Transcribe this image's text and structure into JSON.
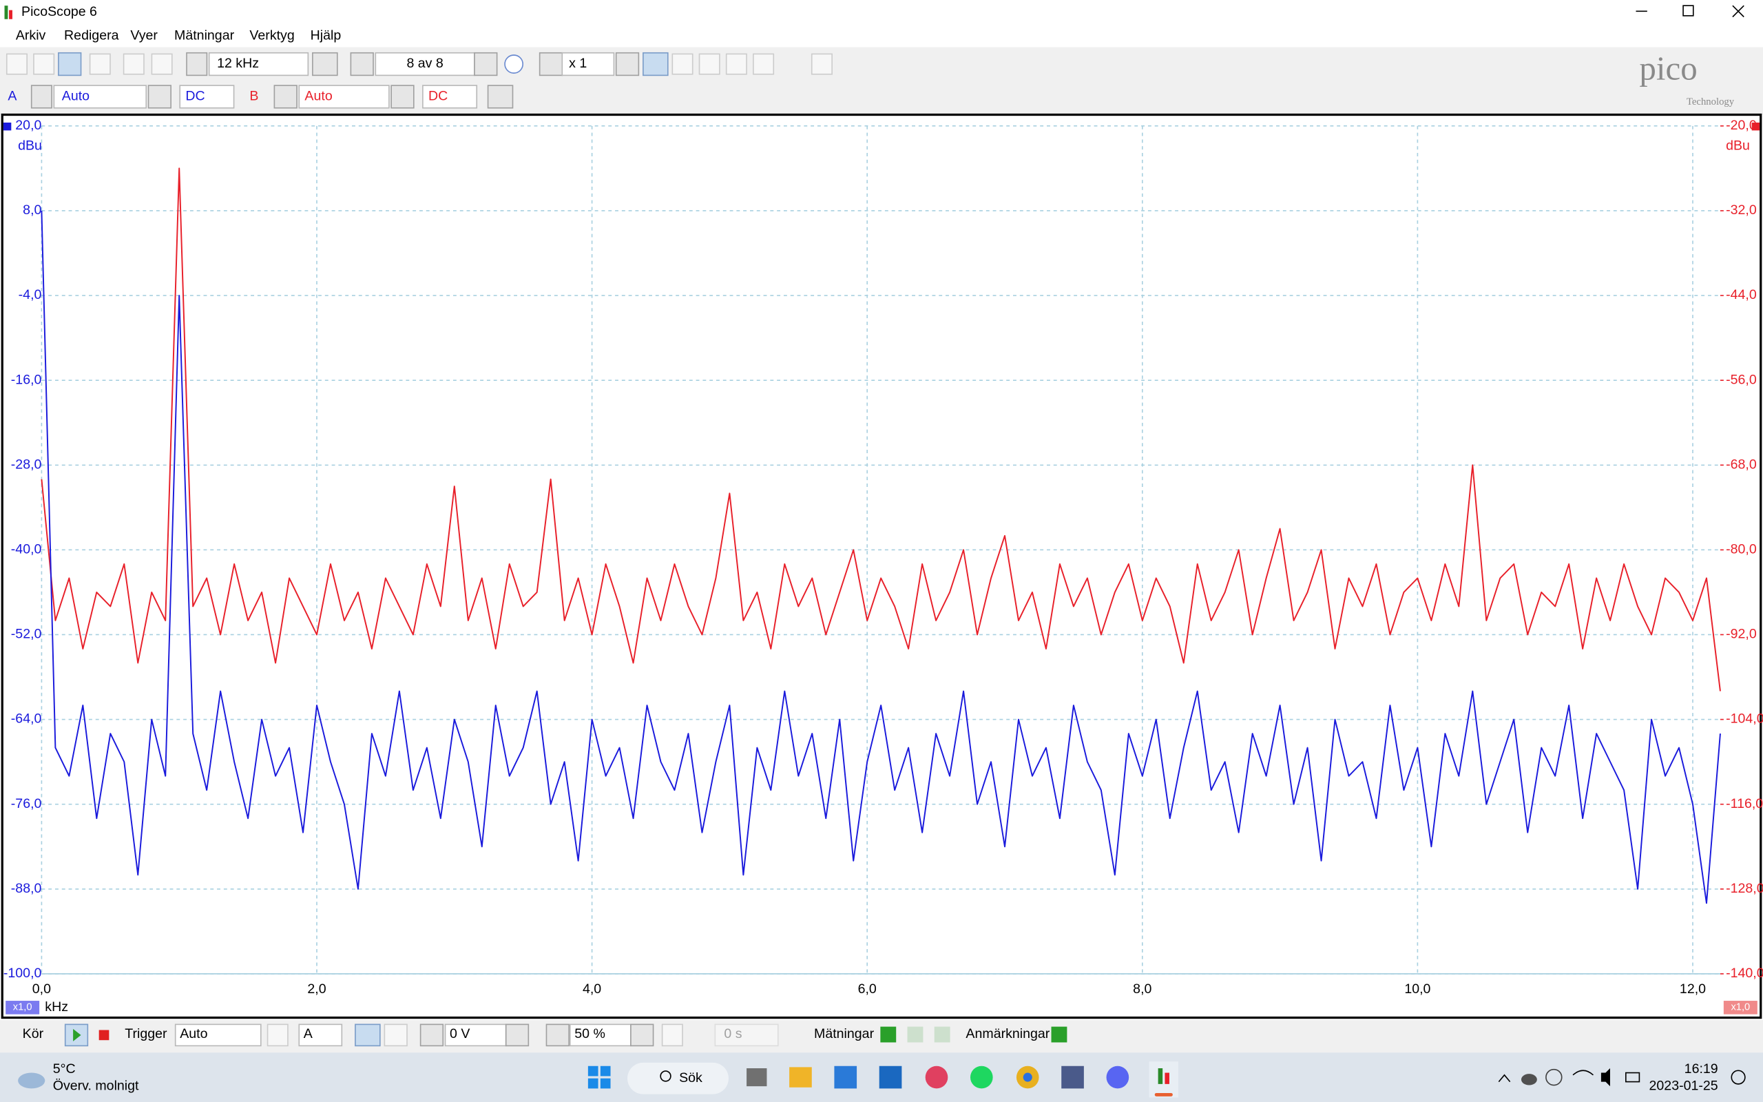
{
  "window": {
    "title": "PicoScope 6"
  },
  "menu": [
    "Arkiv",
    "Redigera",
    "Vyer",
    "Mätningar",
    "Verktyg",
    "Hjälp"
  ],
  "toolbar": {
    "span": "12 kHz",
    "buffer": "8 av 8",
    "zoom": "x 1"
  },
  "channels": [
    {
      "name": "A",
      "range": "Auto",
      "coupling": "DC"
    },
    {
      "name": "B",
      "range": "Auto",
      "coupling": "DC"
    }
  ],
  "logo": {
    "name": "pico",
    "subtitle": "Technology"
  },
  "scale_badges": [
    "x1,0",
    "x1,0"
  ],
  "bottom_bar": {
    "run": "Kör",
    "trigger_label": "Trigger",
    "trigger_mode": "Auto",
    "trigger_channel": "A",
    "threshold": "0 V",
    "pre_trigger": "50 %",
    "delay": "0 s",
    "measurements": "Mätningar",
    "notes": "Anmärkningar"
  },
  "taskbar": {
    "temperature": "5°C",
    "weather": "Överv. molnigt",
    "search": "Sök",
    "time": "16:19",
    "date": "2023-01-25"
  },
  "chart_data": {
    "type": "line",
    "x_label": "kHz",
    "y_label": "dBu",
    "y2_label": "dBu",
    "grid": true,
    "xlim": [
      0,
      12.2
    ],
    "ylim": [
      -100,
      20
    ],
    "y2lim": [
      -140,
      -20
    ],
    "xticks": [
      {
        "value": 0,
        "label": "0,0"
      },
      {
        "value": 2,
        "label": "2,0"
      },
      {
        "value": 4,
        "label": "4,0"
      },
      {
        "value": 6,
        "label": "6,0"
      },
      {
        "value": 8,
        "label": "8,0"
      },
      {
        "value": 10,
        "label": "10,0"
      },
      {
        "value": 12,
        "label": "12,0"
      }
    ],
    "yticks": [
      {
        "value": 20,
        "label": "20,0"
      },
      {
        "value": 8,
        "label": "8,0"
      },
      {
        "value": -4,
        "label": "-4,0"
      },
      {
        "value": -16,
        "label": "-16,0"
      },
      {
        "value": -28,
        "label": "-28,0"
      },
      {
        "value": -40,
        "label": "-40,0"
      },
      {
        "value": -52,
        "label": "-52,0"
      },
      {
        "value": -64,
        "label": "-64,0"
      },
      {
        "value": -76,
        "label": "-76,0"
      },
      {
        "value": -88,
        "label": "-88,0"
      },
      {
        "value": -100,
        "label": "-100,0"
      }
    ],
    "y2ticks": [
      {
        "value": -20,
        "label": "-20,0"
      },
      {
        "value": -32,
        "label": "-32,0"
      },
      {
        "value": -44,
        "label": "-44,0"
      },
      {
        "value": -56,
        "label": "-56,0"
      },
      {
        "value": -68,
        "label": "-68,0"
      },
      {
        "value": -80,
        "label": "-80,0"
      },
      {
        "value": -92,
        "label": "-92,0"
      },
      {
        "value": -104,
        "label": "-104,0"
      },
      {
        "value": -116,
        "label": "-116,0"
      },
      {
        "value": -128,
        "label": "-128,0"
      },
      {
        "value": -140,
        "label": "-140,0"
      }
    ],
    "x": [
      0,
      0.1,
      0.2,
      0.3,
      0.4,
      0.5,
      0.6,
      0.7,
      0.8,
      0.9,
      1.0,
      1.1,
      1.2,
      1.3,
      1.4,
      1.5,
      1.6,
      1.7,
      1.8,
      1.9,
      2.0,
      2.1,
      2.2,
      2.3,
      2.4,
      2.5,
      2.6,
      2.7,
      2.8,
      2.9,
      3.0,
      3.1,
      3.2,
      3.3,
      3.4,
      3.5,
      3.6,
      3.7,
      3.8,
      3.9,
      4.0,
      4.1,
      4.2,
      4.3,
      4.4,
      4.5,
      4.6,
      4.7,
      4.8,
      4.9,
      5.0,
      5.1,
      5.2,
      5.3,
      5.4,
      5.5,
      5.6,
      5.7,
      5.8,
      5.9,
      6.0,
      6.1,
      6.2,
      6.3,
      6.4,
      6.5,
      6.6,
      6.7,
      6.8,
      6.9,
      7.0,
      7.1,
      7.2,
      7.3,
      7.4,
      7.5,
      7.6,
      7.7,
      7.8,
      7.9,
      8.0,
      8.1,
      8.2,
      8.3,
      8.4,
      8.5,
      8.6,
      8.7,
      8.8,
      8.9,
      9.0,
      9.1,
      9.2,
      9.3,
      9.4,
      9.5,
      9.6,
      9.7,
      9.8,
      9.9,
      10.0,
      10.1,
      10.2,
      10.3,
      10.4,
      10.5,
      10.6,
      10.7,
      10.8,
      10.9,
      11.0,
      11.1,
      11.2,
      11.3,
      11.4,
      11.5,
      11.6,
      11.7,
      11.8,
      11.9,
      12.0,
      12.1,
      12.2
    ],
    "series": [
      {
        "color": "#1a1adc",
        "axis": "y",
        "values": [
          8,
          -68,
          -72,
          -62,
          -78,
          -66,
          -70,
          -86,
          -64,
          -72,
          -4,
          -66,
          -74,
          -60,
          -70,
          -78,
          -64,
          -72,
          -68,
          -80,
          -62,
          -70,
          -76,
          -88,
          -66,
          -72,
          -60,
          -74,
          -68,
          -78,
          -64,
          -70,
          -82,
          -62,
          -72,
          -68,
          -60,
          -76,
          -70,
          -84,
          -64,
          -72,
          -68,
          -78,
          -62,
          -70,
          -74,
          -66,
          -80,
          -70,
          -62,
          -86,
          -68,
          -74,
          -60,
          -72,
          -66,
          -78,
          -64,
          -84,
          -70,
          -62,
          -74,
          -68,
          -80,
          -66,
          -72,
          -60,
          -76,
          -70,
          -82,
          -64,
          -72,
          -68,
          -78,
          -62,
          -70,
          -74,
          -86,
          -66,
          -72,
          -64,
          -78,
          -68,
          -60,
          -74,
          -70,
          -80,
          -66,
          -72,
          -62,
          -76,
          -68,
          -84,
          -64,
          -72,
          -70,
          -78,
          -62,
          -74,
          -68,
          -82,
          -66,
          -72,
          -60,
          -76,
          -70,
          -64,
          -80,
          -68,
          -72,
          -62,
          -78,
          -66,
          -70,
          -74,
          -88,
          -64,
          -72,
          -68,
          -76,
          -90,
          -66
        ]
      },
      {
        "color": "#e8202a",
        "axis": "y2",
        "values": [
          -70,
          -90,
          -84,
          -94,
          -86,
          -88,
          -82,
          -96,
          -86,
          -90,
          -26,
          -88,
          -84,
          -92,
          -82,
          -90,
          -86,
          -96,
          -84,
          -88,
          -92,
          -82,
          -90,
          -86,
          -94,
          -84,
          -88,
          -92,
          -82,
          -88,
          -71,
          -90,
          -84,
          -94,
          -82,
          -88,
          -86,
          -70,
          -90,
          -84,
          -92,
          -82,
          -88,
          -96,
          -84,
          -90,
          -82,
          -88,
          -92,
          -84,
          -72,
          -90,
          -86,
          -94,
          -82,
          -88,
          -84,
          -92,
          -86,
          -80,
          -90,
          -84,
          -88,
          -94,
          -82,
          -90,
          -86,
          -80,
          -92,
          -84,
          -78,
          -90,
          -86,
          -94,
          -82,
          -88,
          -84,
          -92,
          -86,
          -82,
          -90,
          -84,
          -88,
          -96,
          -82,
          -90,
          -86,
          -80,
          -92,
          -84,
          -77,
          -90,
          -86,
          -80,
          -94,
          -84,
          -88,
          -82,
          -92,
          -86,
          -84,
          -90,
          -82,
          -88,
          -68,
          -90,
          -84,
          -82,
          -92,
          -86,
          -88,
          -82,
          -94,
          -84,
          -90,
          -82,
          -88,
          -92,
          -84,
          -86,
          -90,
          -84,
          -100
        ]
      }
    ]
  }
}
